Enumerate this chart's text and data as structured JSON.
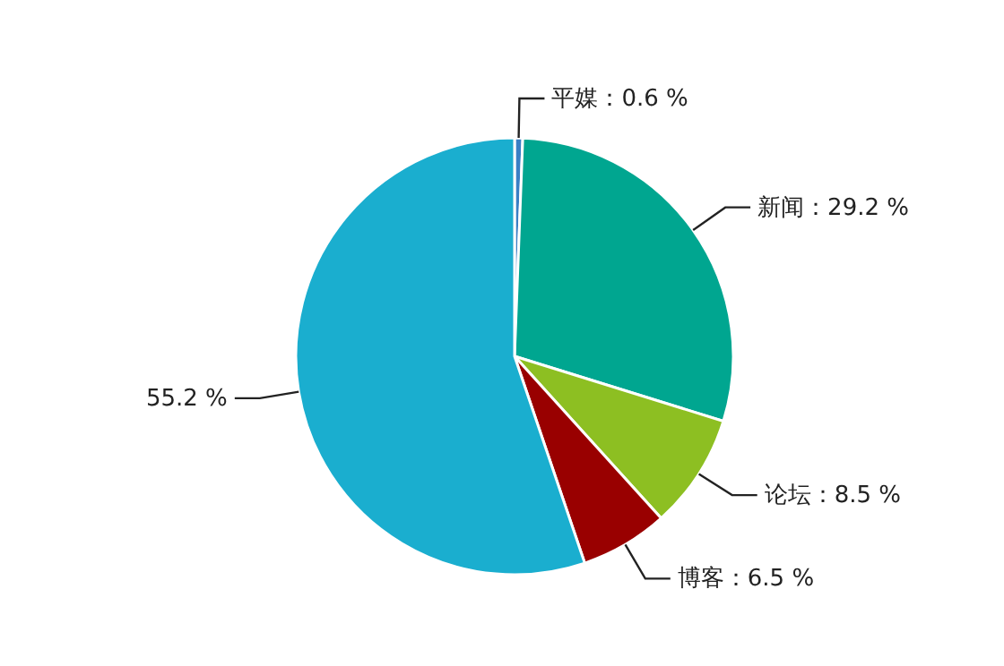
{
  "chart_data": {
    "type": "pie",
    "categories": [
      "平媒",
      "新闻",
      "论坛",
      "博客",
      null
    ],
    "values": [
      0.6,
      29.2,
      8.5,
      6.5,
      55.2
    ],
    "colors": [
      "#3a7fc4",
      "#00a690",
      "#8dbf22",
      "#990000",
      "#1aaecf"
    ],
    "value_labels": [
      "：0.6 %",
      "：29.2 %",
      "：8.5 %",
      "：6.5 %",
      "55.2 %"
    ]
  }
}
